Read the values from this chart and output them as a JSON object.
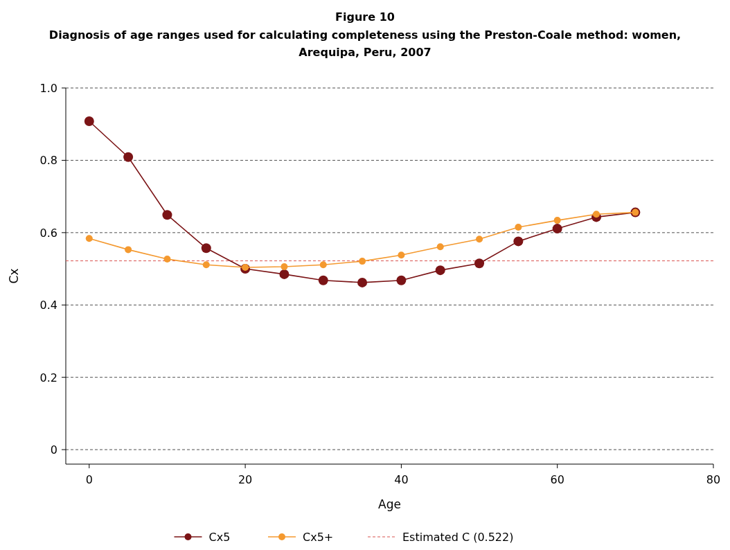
{
  "chart_data": {
    "type": "line",
    "title": "Figure 10",
    "subtitle": "Diagnosis of age ranges used for calculating completeness using the Preston-Coale method: women, Arequipa, Peru, 2007",
    "xlabel": "Age",
    "ylabel": "Cx",
    "x": [
      0,
      5,
      10,
      15,
      20,
      25,
      30,
      35,
      40,
      45,
      50,
      55,
      60,
      65,
      70
    ],
    "series": [
      {
        "name": "Cx5",
        "color": "#7b1416",
        "values": [
          0.908,
          0.809,
          0.649,
          0.557,
          0.5,
          0.485,
          0.468,
          0.462,
          0.468,
          0.496,
          0.515,
          0.576,
          0.611,
          0.643,
          0.656
        ]
      },
      {
        "name": "Cx5+",
        "color": "#f4992f",
        "values": [
          0.584,
          0.553,
          0.527,
          0.511,
          0.504,
          0.506,
          0.511,
          0.521,
          0.538,
          0.561,
          0.582,
          0.615,
          0.634,
          0.651,
          0.656
        ]
      }
    ],
    "ref_lines": [
      {
        "axis": "y",
        "value": 0.522,
        "label": "Estimated C (0.522)",
        "color": "#d9534f",
        "line_style": "dashed"
      }
    ],
    "xlim": [
      -3,
      80
    ],
    "xticks": [
      0,
      20,
      40,
      60,
      80
    ],
    "ylim": [
      -0.04,
      1
    ],
    "yticks": [
      {
        "value": 0,
        "label": "0"
      },
      0.2,
      0.4,
      0.6,
      0.8,
      {
        "value": 1,
        "label": "1.0"
      }
    ],
    "grid": "y",
    "legend": "bottom",
    "marker": "circle",
    "line_style": "solid"
  }
}
